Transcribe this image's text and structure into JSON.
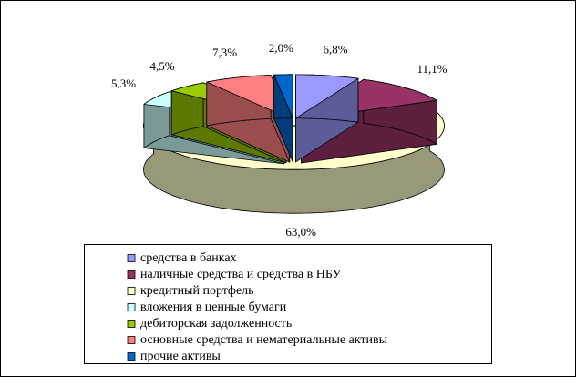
{
  "chart_data": {
    "type": "pie",
    "categories": [
      "средства в банках",
      "наличные средства и средства в НБУ",
      "кредитный портфель",
      "вложения в ценные бумаги",
      "дебиторская задолженность",
      "основные средства и нематериальные активы",
      "прочие активы"
    ],
    "values": [
      6.8,
      11.1,
      63.0,
      5.3,
      4.5,
      7.3,
      2.0
    ],
    "value_labels": [
      "6,8%",
      "11,1%",
      "63,0%",
      "5,3%",
      "4,5%",
      "7,3%",
      "2,0%"
    ],
    "colors": [
      "#9999ff",
      "#993366",
      "#ffffcc",
      "#ccffff",
      "#99cc00",
      "#ff8080",
      "#0066cc"
    ],
    "legend": "bottom"
  }
}
